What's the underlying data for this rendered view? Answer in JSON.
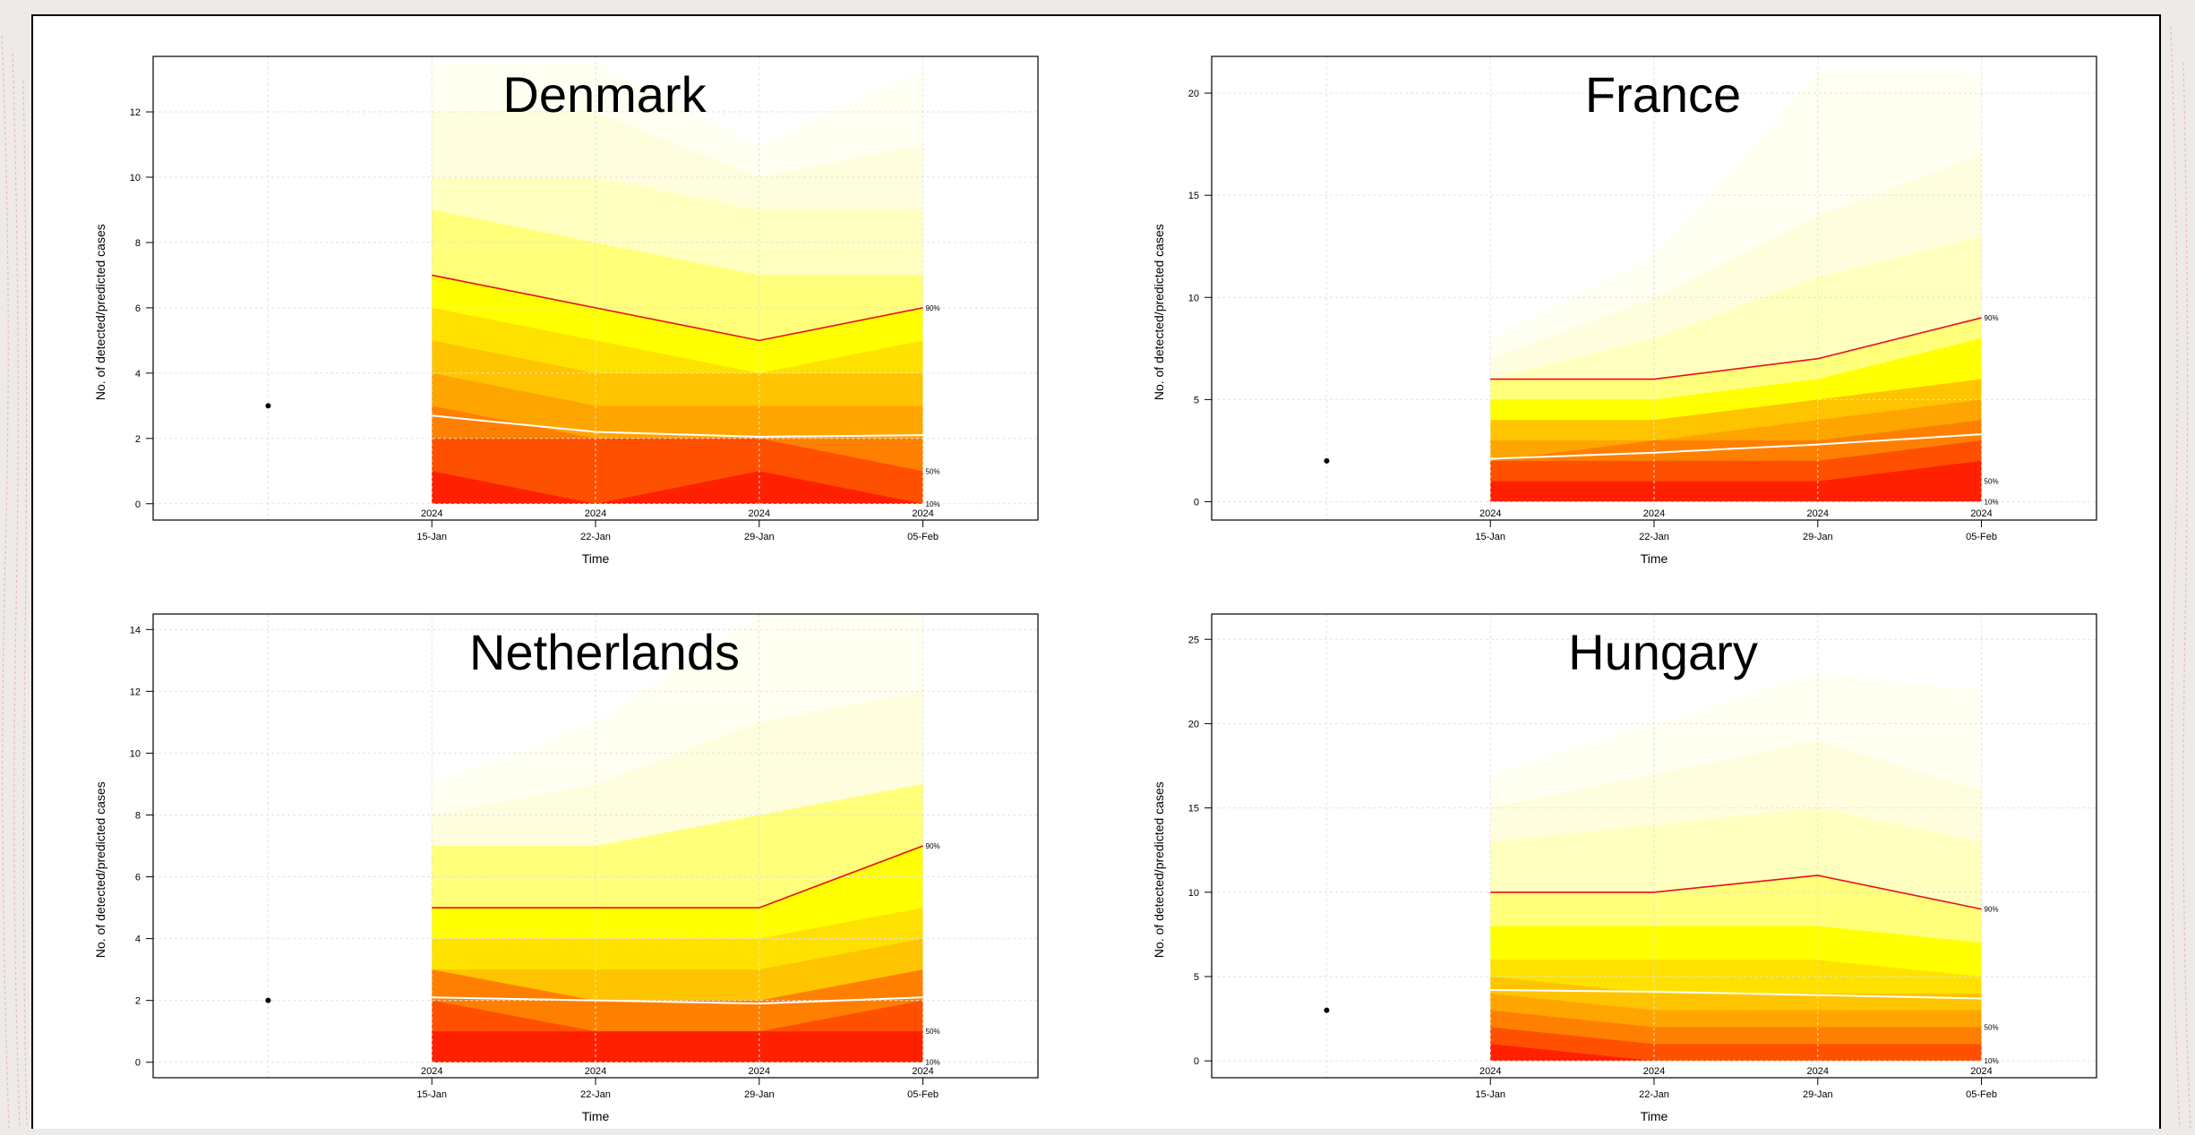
{
  "chart_data": [
    {
      "type": "area",
      "title": "Denmark",
      "xlabel": "Time",
      "ylabel": "No. of detected/predicted cases",
      "yticks": [
        "0",
        "2",
        "4",
        "6",
        "8",
        "10",
        "12"
      ],
      "ylim": [
        -0.5,
        13.7
      ],
      "x_tick_labels": [
        {
          "date": "15-Jan",
          "year": "2024"
        },
        {
          "date": "22-Jan",
          "year": "2024"
        },
        {
          "date": "29-Jan",
          "year": "2024"
        },
        {
          "date": "05-Feb",
          "year": "2024"
        }
      ],
      "observed": {
        "x": "08-Jan",
        "y": 3
      },
      "quantile_labels": [
        {
          "label": "90%",
          "y": 6
        },
        {
          "label": "50%",
          "y": 1
        },
        {
          "label": "10%",
          "y": 0
        }
      ],
      "series": [
        {
          "name": "90%",
          "values": [
            7,
            6,
            5,
            6
          ]
        },
        {
          "name": "50%",
          "values": [
            2.7,
            2.2,
            2.05,
            2.1
          ]
        }
      ],
      "bands": [
        [
          13.5,
          13.5,
          11.0,
          13.3
        ],
        [
          12.0,
          12.0,
          10.0,
          11.0
        ],
        [
          10.0,
          10.0,
          9.0,
          9.0
        ],
        [
          9.0,
          8.0,
          7.0,
          7.0
        ],
        [
          7.0,
          6.0,
          5.0,
          6.0
        ],
        [
          6.0,
          5.0,
          4.0,
          5.0
        ],
        [
          5.0,
          4.0,
          4.0,
          4.0
        ],
        [
          4.0,
          3.0,
          3.0,
          3.0
        ],
        [
          3.0,
          2.0,
          2.0,
          2.0
        ],
        [
          2.0,
          2.0,
          2.0,
          1.0
        ],
        [
          1.0,
          0.0,
          1.0,
          0.0
        ]
      ]
    },
    {
      "type": "area",
      "title": "France",
      "xlabel": "Time",
      "ylabel": "No. of detected/predicted cases",
      "yticks": [
        "0",
        "5",
        "10",
        "15",
        "20"
      ],
      "ylim": [
        -0.9,
        21.8
      ],
      "x_tick_labels": [
        {
          "date": "15-Jan",
          "year": "2024"
        },
        {
          "date": "22-Jan",
          "year": "2024"
        },
        {
          "date": "29-Jan",
          "year": "2024"
        },
        {
          "date": "05-Feb",
          "year": "2024"
        }
      ],
      "observed": {
        "x": "08-Jan",
        "y": 2
      },
      "quantile_labels": [
        {
          "label": "90%",
          "y": 9
        },
        {
          "label": "50%",
          "y": 1
        },
        {
          "label": "10%",
          "y": 0
        }
      ],
      "series": [
        {
          "name": "90%",
          "values": [
            6,
            6,
            7,
            9
          ]
        },
        {
          "name": "50%",
          "values": [
            2.1,
            2.4,
            2.8,
            3.3
          ]
        }
      ],
      "bands": [
        [
          8.0,
          12.0,
          21.0,
          21.0
        ],
        [
          7.0,
          10.0,
          14.0,
          17.0
        ],
        [
          6.0,
          8.0,
          11.0,
          13.0
        ],
        [
          6.0,
          6.0,
          7.0,
          9.0
        ],
        [
          5.0,
          5.0,
          6.0,
          8.0
        ],
        [
          4.0,
          4.0,
          5.0,
          6.0
        ],
        [
          3.0,
          3.0,
          4.0,
          5.0
        ],
        [
          2.0,
          3.0,
          3.0,
          4.0
        ],
        [
          2.0,
          2.0,
          2.0,
          3.0
        ],
        [
          1.0,
          1.0,
          1.0,
          2.0
        ]
      ]
    },
    {
      "type": "area",
      "title": "Netherlands",
      "xlabel": "Time",
      "ylabel": "No. of detected/predicted cases",
      "yticks": [
        "0",
        "2",
        "4",
        "6",
        "8",
        "10",
        "12",
        "14"
      ],
      "ylim": [
        -0.5,
        14.5
      ],
      "x_tick_labels": [
        {
          "date": "15-Jan",
          "year": "2024"
        },
        {
          "date": "22-Jan",
          "year": "2024"
        },
        {
          "date": "29-Jan",
          "year": "2024"
        },
        {
          "date": "05-Feb",
          "year": "2024"
        }
      ],
      "observed": {
        "x": "08-Jan",
        "y": 2
      },
      "quantile_labels": [
        {
          "label": "90%",
          "y": 7
        },
        {
          "label": "50%",
          "y": 1
        },
        {
          "label": "10%",
          "y": 0
        }
      ],
      "series": [
        {
          "name": "90%",
          "values": [
            5,
            5,
            5,
            7
          ]
        },
        {
          "name": "50%",
          "values": [
            2.1,
            2.0,
            1.9,
            2.1
          ]
        }
      ],
      "bands": [
        [
          9.0,
          11.0,
          14.5,
          14.5
        ],
        [
          8.0,
          9.0,
          11.0,
          12.0
        ],
        [
          7.0,
          7.0,
          8.0,
          9.0
        ],
        [
          5.0,
          5.0,
          5.0,
          7.0
        ],
        [
          4.0,
          4.0,
          4.0,
          5.0
        ],
        [
          3.0,
          3.0,
          3.0,
          4.0
        ],
        [
          3.0,
          2.0,
          2.0,
          3.0
        ],
        [
          2.0,
          1.0,
          1.0,
          2.0
        ],
        [
          1.0,
          1.0,
          1.0,
          1.0
        ]
      ]
    },
    {
      "type": "area",
      "title": "Hungary",
      "xlabel": "Time",
      "ylabel": "No. of detected/predicted cases",
      "yticks": [
        "0",
        "5",
        "10",
        "15",
        "20",
        "25"
      ],
      "ylim": [
        -1,
        26.5
      ],
      "x_tick_labels": [
        {
          "date": "15-Jan",
          "year": "2024"
        },
        {
          "date": "22-Jan",
          "year": "2024"
        },
        {
          "date": "29-Jan",
          "year": "2024"
        },
        {
          "date": "05-Feb",
          "year": "2024"
        }
      ],
      "observed": {
        "x": "08-Jan",
        "y": 3
      },
      "quantile_labels": [
        {
          "label": "90%",
          "y": 9
        },
        {
          "label": "50%",
          "y": 2
        },
        {
          "label": "10%",
          "y": 0
        }
      ],
      "series": [
        {
          "name": "90%",
          "values": [
            10,
            10,
            11,
            9
          ]
        },
        {
          "name": "50%",
          "values": [
            4.2,
            4.1,
            3.9,
            3.7
          ]
        }
      ],
      "bands": [
        [
          17.0,
          20.0,
          23.0,
          22.0
        ],
        [
          15.0,
          17.0,
          19.0,
          16.0
        ],
        [
          13.0,
          14.0,
          15.0,
          13.0
        ],
        [
          10.0,
          10.0,
          11.0,
          9.0
        ],
        [
          8.0,
          8.0,
          8.0,
          7.0
        ],
        [
          6.0,
          6.0,
          6.0,
          5.0
        ],
        [
          5.0,
          4.0,
          4.0,
          4.0
        ],
        [
          4.0,
          3.0,
          3.0,
          3.0
        ],
        [
          3.0,
          2.0,
          2.0,
          2.0
        ],
        [
          2.0,
          1.0,
          1.0,
          1.0
        ],
        [
          1.0,
          0.0,
          0.0,
          0.0
        ]
      ]
    }
  ],
  "colors": {
    "band_scale": [
      "#fffff2",
      "#fefede",
      "#ffffbf",
      "#ffff7a",
      "#ffff00",
      "#ffe100",
      "#ffc400",
      "#ffa500",
      "#ff8000",
      "#ff5000",
      "#ff2000"
    ],
    "q90_line": "#e8101a",
    "median_line": "#ffffff",
    "grid": "#e2e2e2",
    "frame_border": "#000000"
  }
}
